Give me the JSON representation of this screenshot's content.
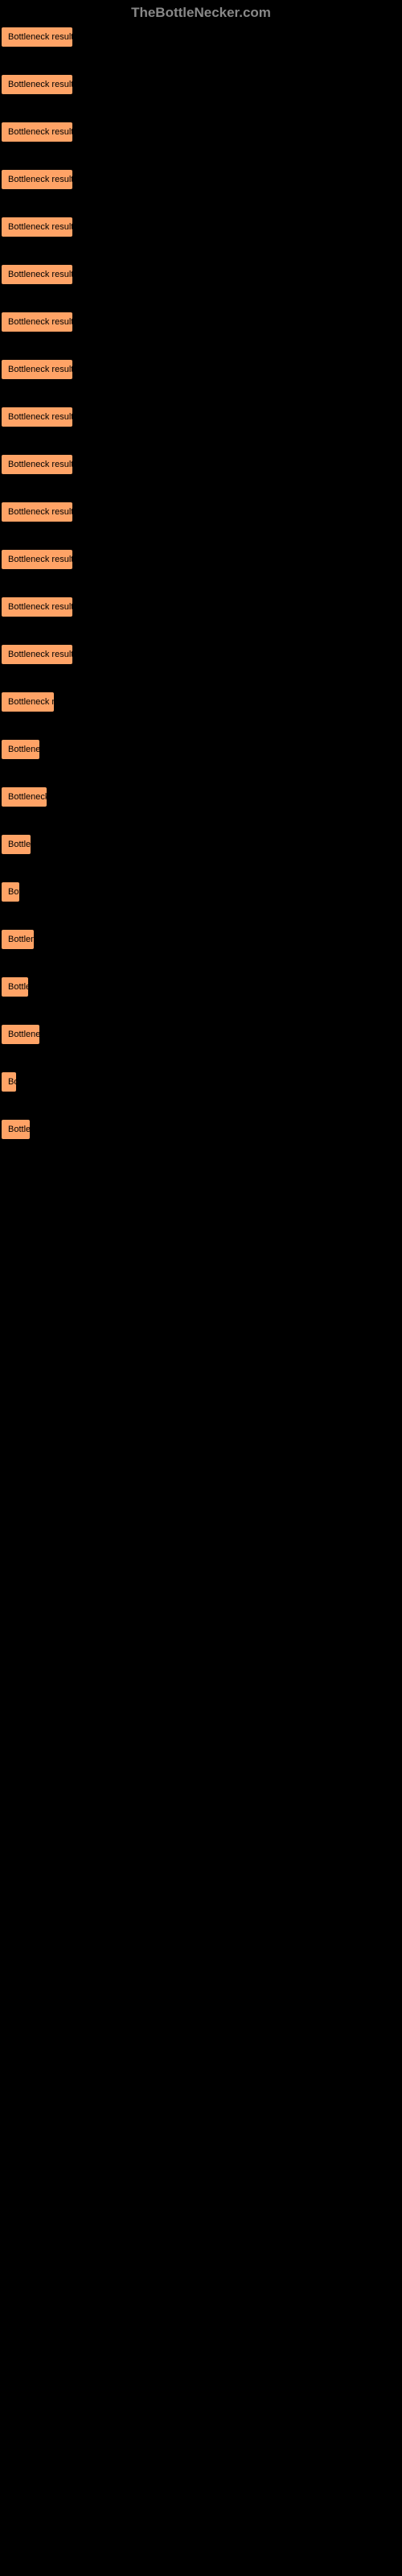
{
  "header": {
    "text": "TheBottleNecker.com"
  },
  "pills": [
    {
      "label": "Bottleneck result",
      "width": 88
    },
    {
      "label": "Bottleneck result",
      "width": 88
    },
    {
      "label": "Bottleneck result",
      "width": 88
    },
    {
      "label": "Bottleneck result",
      "width": 88
    },
    {
      "label": "Bottleneck result",
      "width": 88
    },
    {
      "label": "Bottleneck result",
      "width": 88
    },
    {
      "label": "Bottleneck result",
      "width": 88
    },
    {
      "label": "Bottleneck result",
      "width": 88
    },
    {
      "label": "Bottleneck result",
      "width": 88
    },
    {
      "label": "Bottleneck result",
      "width": 88
    },
    {
      "label": "Bottleneck result",
      "width": 88
    },
    {
      "label": "Bottleneck result",
      "width": 88
    },
    {
      "label": "Bottleneck result",
      "width": 88
    },
    {
      "label": "Bottleneck result",
      "width": 88
    },
    {
      "label": "Bottleneck re",
      "width": 65
    },
    {
      "label": "Bottlenec",
      "width": 47
    },
    {
      "label": "Bottleneck r",
      "width": 56
    },
    {
      "label": "Bottlen",
      "width": 36
    },
    {
      "label": "Bot",
      "width": 22
    },
    {
      "label": "Bottlene",
      "width": 40
    },
    {
      "label": "Bottle",
      "width": 33
    },
    {
      "label": "Bottlenec",
      "width": 47
    },
    {
      "label": "Bo",
      "width": 18
    },
    {
      "label": "Bottler",
      "width": 35
    }
  ],
  "colors": {
    "background": "#000000",
    "pill_background": "#ffa366",
    "pill_text": "#000000",
    "header_text": "#888888"
  }
}
